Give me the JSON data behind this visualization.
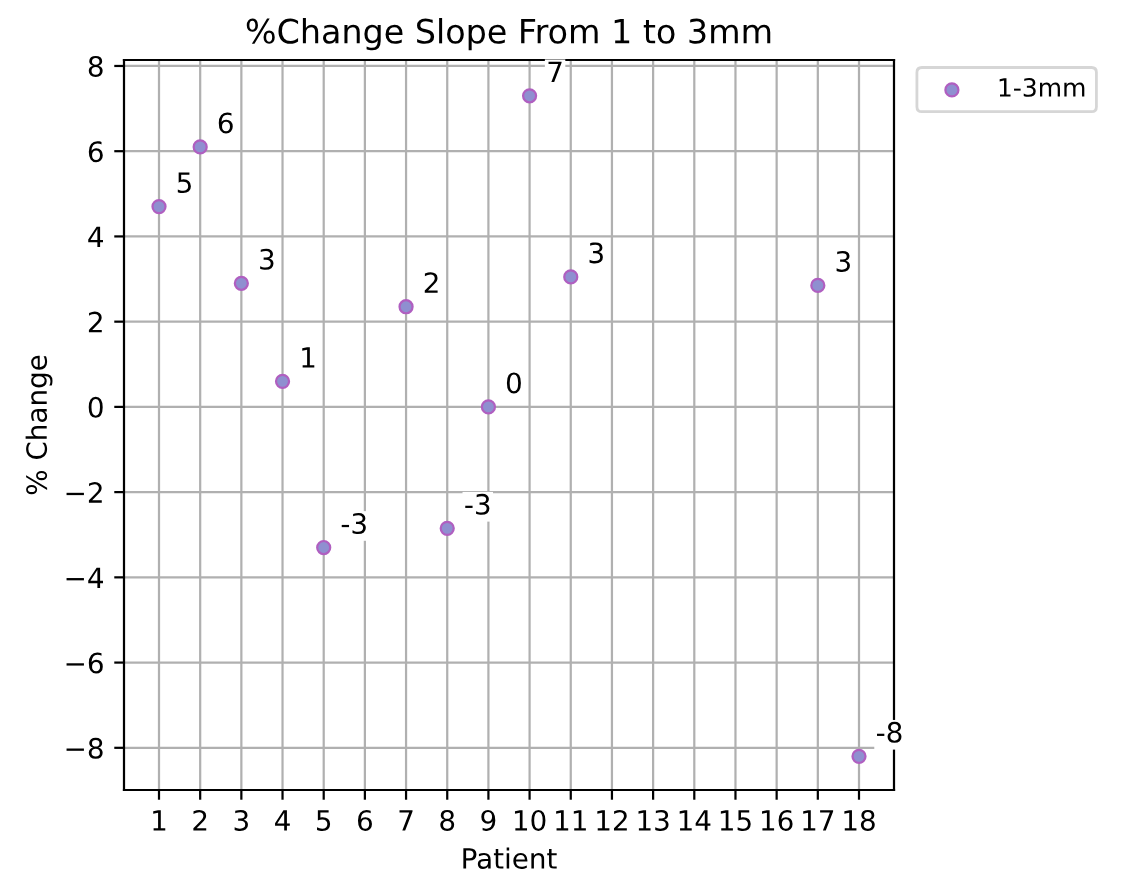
{
  "chart_data": {
    "type": "scatter",
    "title": "%Change Slope From 1 to 3mm",
    "xlabel": "Patient",
    "ylabel": "% Change",
    "x": [
      1,
      2,
      3,
      4,
      5,
      7,
      8,
      9,
      10,
      11,
      17,
      18
    ],
    "series": [
      {
        "name": "1-3mm",
        "color": "#8f8fd0",
        "values": [
          4.7,
          6.1,
          2.9,
          0.6,
          -3.3,
          2.35,
          -2.85,
          0.0,
          7.3,
          3.05,
          2.85,
          -8.2
        ],
        "value_labels": [
          "5",
          "6",
          "3",
          "1",
          "-3",
          "2",
          "-3",
          "0",
          "7",
          "3",
          "3",
          "-8"
        ]
      }
    ],
    "xlim": [
      0.15,
      18.85
    ],
    "xticks": [
      1,
      2,
      3,
      4,
      5,
      6,
      7,
      8,
      9,
      10,
      11,
      12,
      13,
      14,
      15,
      16,
      17,
      18
    ],
    "ylim": [
      -8.99,
      8.14
    ],
    "yticks": [
      {
        "value": -8,
        "label": "−8"
      },
      {
        "value": -6,
        "label": "−6"
      },
      {
        "value": -4,
        "label": "−4"
      },
      {
        "value": -2,
        "label": "−2"
      },
      0,
      2,
      4,
      6,
      8
    ],
    "grid": true,
    "legend": "top right",
    "marker": "circle"
  }
}
